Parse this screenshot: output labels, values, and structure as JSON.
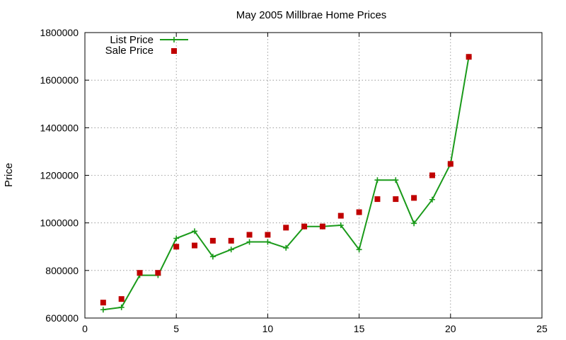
{
  "chart_data": {
    "type": "line",
    "title": "May 2005 Millbrae Home Prices",
    "xlabel": "",
    "ylabel": "Price",
    "xlim": [
      0,
      25
    ],
    "ylim": [
      600000,
      1800000
    ],
    "xticks": [
      0,
      5,
      10,
      15,
      20,
      25
    ],
    "yticks": [
      600000,
      800000,
      1000000,
      1200000,
      1400000,
      1600000,
      1800000
    ],
    "grid": true,
    "legend_position": "top-left",
    "series": [
      {
        "name": "List Price",
        "style": "line-with-plus-markers",
        "color": "#1a9a1a",
        "x": [
          1,
          2,
          3,
          4,
          5,
          6,
          7,
          8,
          9,
          10,
          11,
          12,
          13,
          14,
          15,
          16,
          17,
          18,
          19,
          20,
          21
        ],
        "y": [
          635000,
          645000,
          780000,
          780000,
          935000,
          965000,
          858000,
          888000,
          920000,
          920000,
          895000,
          985000,
          985000,
          990000,
          888000,
          1180000,
          1180000,
          998000,
          1098000,
          1248000,
          1698000
        ]
      },
      {
        "name": "Sale Price",
        "style": "square-markers",
        "color": "#c00000",
        "x": [
          1,
          2,
          3,
          4,
          5,
          6,
          7,
          8,
          9,
          10,
          11,
          12,
          13,
          14,
          15,
          16,
          17,
          18,
          19,
          20,
          21
        ],
        "y": [
          665000,
          680000,
          790000,
          790000,
          900000,
          905000,
          925000,
          925000,
          950000,
          950000,
          980000,
          985000,
          985000,
          1030000,
          1045000,
          1100000,
          1100000,
          1105000,
          1200000,
          1248000,
          1698000
        ]
      }
    ]
  }
}
